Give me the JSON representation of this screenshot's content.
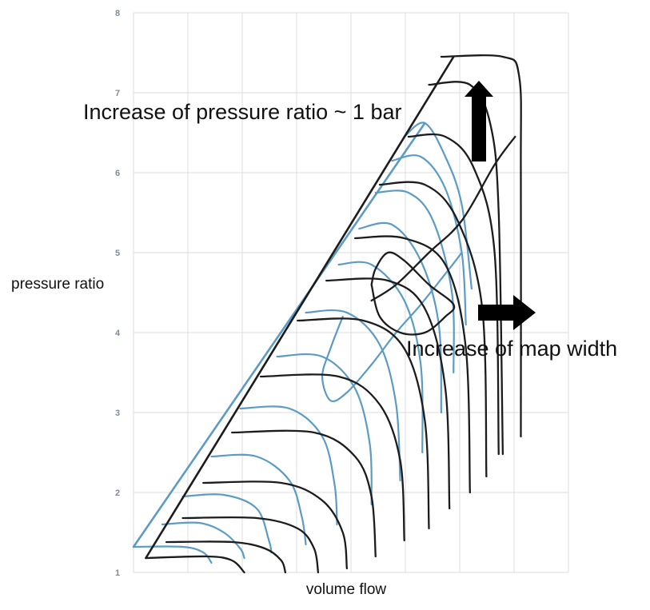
{
  "chart_data": {
    "type": "line",
    "title": "",
    "xlabel": "volume flow",
    "ylabel": "pressure ratio",
    "ylim": [
      1,
      8
    ],
    "y_ticks": [
      "1",
      "2",
      "3",
      "4",
      "5",
      "6",
      "7",
      "8"
    ],
    "x_tick_labels": [],
    "grid": true,
    "colors": {
      "dark": "#1c1c1c",
      "blue": "#5b9bc4",
      "grid": "#dcdcdc",
      "tick": "#7f8c9a",
      "arrow": "#000000"
    },
    "series": [
      {
        "set": "dark",
        "kind": "surge-line",
        "points": [
          [
            0.15,
            1.18
          ],
          [
            3.9,
            7.45
          ]
        ]
      },
      {
        "set": "dark",
        "kind": "speed-line",
        "points": [
          [
            0.15,
            1.18
          ],
          [
            0.9,
            1.2
          ],
          [
            1.2,
            1.15
          ],
          [
            1.35,
            1.0
          ]
        ]
      },
      {
        "set": "dark",
        "kind": "speed-line",
        "points": [
          [
            0.4,
            1.38
          ],
          [
            1.2,
            1.38
          ],
          [
            1.6,
            1.3
          ],
          [
            1.8,
            1.15
          ],
          [
            1.85,
            1.0
          ]
        ]
      },
      {
        "set": "dark",
        "kind": "speed-line",
        "points": [
          [
            0.6,
            1.68
          ],
          [
            1.5,
            1.68
          ],
          [
            2.0,
            1.55
          ],
          [
            2.2,
            1.3
          ],
          [
            2.25,
            1.0
          ]
        ]
      },
      {
        "set": "dark",
        "kind": "speed-line",
        "points": [
          [
            0.85,
            2.12
          ],
          [
            1.8,
            2.12
          ],
          [
            2.3,
            1.9
          ],
          [
            2.55,
            1.5
          ],
          [
            2.6,
            1.05
          ]
        ]
      },
      {
        "set": "dark",
        "kind": "speed-line",
        "points": [
          [
            1.2,
            2.75
          ],
          [
            2.2,
            2.75
          ],
          [
            2.7,
            2.45
          ],
          [
            2.9,
            1.95
          ],
          [
            2.95,
            1.2
          ]
        ]
      },
      {
        "set": "dark",
        "kind": "speed-line",
        "points": [
          [
            1.55,
            3.45
          ],
          [
            2.5,
            3.45
          ],
          [
            3.0,
            3.1
          ],
          [
            3.25,
            2.4
          ],
          [
            3.3,
            1.4
          ]
        ]
      },
      {
        "set": "dark",
        "kind": "speed-line",
        "points": [
          [
            2.0,
            4.15
          ],
          [
            2.8,
            4.15
          ],
          [
            3.3,
            3.8
          ],
          [
            3.55,
            2.9
          ],
          [
            3.6,
            1.55
          ]
        ]
      },
      {
        "set": "dark",
        "kind": "speed-line",
        "points": [
          [
            2.35,
            4.65
          ],
          [
            3.1,
            4.65
          ],
          [
            3.55,
            4.3
          ],
          [
            3.8,
            3.3
          ],
          [
            3.85,
            1.8
          ]
        ]
      },
      {
        "set": "dark",
        "kind": "speed-line",
        "points": [
          [
            2.7,
            5.18
          ],
          [
            3.3,
            5.18
          ],
          [
            3.8,
            4.85
          ],
          [
            4.05,
            3.8
          ],
          [
            4.1,
            2.0
          ]
        ]
      },
      {
        "set": "dark",
        "kind": "speed-line",
        "points": [
          [
            3.0,
            5.85
          ],
          [
            3.55,
            5.85
          ],
          [
            3.95,
            5.4
          ],
          [
            4.25,
            4.3
          ],
          [
            4.3,
            2.2
          ]
        ]
      },
      {
        "set": "dark",
        "kind": "speed-line",
        "points": [
          [
            3.35,
            6.45
          ],
          [
            3.8,
            6.45
          ],
          [
            4.15,
            6.05
          ],
          [
            4.4,
            5.0
          ],
          [
            4.45,
            2.48
          ]
        ]
      },
      {
        "set": "dark",
        "kind": "speed-line",
        "points": [
          [
            3.6,
            7.1
          ],
          [
            4.1,
            7.1
          ],
          [
            4.35,
            6.6
          ],
          [
            4.45,
            5.5
          ],
          [
            4.5,
            2.48
          ]
        ]
      },
      {
        "set": "dark",
        "kind": "speed-line",
        "points": [
          [
            3.75,
            7.45
          ],
          [
            4.5,
            7.45
          ],
          [
            4.7,
            7.2
          ],
          [
            4.72,
            6.0
          ],
          [
            4.72,
            2.7
          ]
        ]
      },
      {
        "set": "dark",
        "kind": "efficiency-island",
        "points": [
          [
            2.9,
            4.6
          ],
          [
            2.95,
            4.8
          ],
          [
            3.1,
            5.0
          ],
          [
            3.3,
            4.9
          ],
          [
            3.6,
            4.6
          ],
          [
            3.9,
            4.35
          ],
          [
            3.8,
            4.2
          ],
          [
            3.55,
            4.0
          ],
          [
            3.25,
            4.0
          ],
          [
            3.0,
            4.2
          ],
          [
            2.9,
            4.6
          ]
        ]
      },
      {
        "set": "dark",
        "kind": "efficiency-island",
        "points": [
          [
            2.9,
            4.4
          ],
          [
            3.2,
            4.6
          ],
          [
            3.6,
            5.0
          ],
          [
            4.0,
            5.4
          ],
          [
            4.4,
            6.1
          ],
          [
            4.65,
            6.45
          ]
        ]
      },
      {
        "set": "blue",
        "kind": "surge-line",
        "points": [
          [
            0.0,
            1.32
          ],
          [
            3.55,
            6.62
          ]
        ]
      },
      {
        "set": "blue",
        "kind": "speed-line",
        "points": [
          [
            0.0,
            1.32
          ],
          [
            0.6,
            1.32
          ],
          [
            0.85,
            1.25
          ],
          [
            0.95,
            1.12
          ]
        ]
      },
      {
        "set": "blue",
        "kind": "speed-line",
        "points": [
          [
            0.35,
            1.6
          ],
          [
            0.8,
            1.62
          ],
          [
            1.1,
            1.5
          ],
          [
            1.3,
            1.3
          ],
          [
            1.35,
            1.18
          ]
        ]
      },
      {
        "set": "blue",
        "kind": "speed-line",
        "points": [
          [
            0.6,
            1.95
          ],
          [
            1.1,
            1.97
          ],
          [
            1.5,
            1.8
          ],
          [
            1.65,
            1.4
          ],
          [
            1.68,
            1.25
          ]
        ]
      },
      {
        "set": "blue",
        "kind": "speed-line",
        "points": [
          [
            0.95,
            2.45
          ],
          [
            1.5,
            2.45
          ],
          [
            1.9,
            2.15
          ],
          [
            2.05,
            1.7
          ],
          [
            2.1,
            1.35
          ]
        ]
      },
      {
        "set": "blue",
        "kind": "speed-line",
        "points": [
          [
            1.3,
            3.05
          ],
          [
            1.9,
            3.05
          ],
          [
            2.3,
            2.7
          ],
          [
            2.45,
            2.1
          ],
          [
            2.48,
            1.6
          ]
        ]
      },
      {
        "set": "blue",
        "kind": "speed-line",
        "points": [
          [
            1.75,
            3.7
          ],
          [
            2.3,
            3.7
          ],
          [
            2.7,
            3.3
          ],
          [
            2.88,
            2.6
          ],
          [
            2.9,
            1.85
          ]
        ]
      },
      {
        "set": "blue",
        "kind": "speed-line",
        "points": [
          [
            2.1,
            4.25
          ],
          [
            2.6,
            4.25
          ],
          [
            3.0,
            3.85
          ],
          [
            3.2,
            3.1
          ],
          [
            3.25,
            2.15
          ]
        ]
      },
      {
        "set": "blue",
        "kind": "speed-line",
        "points": [
          [
            2.5,
            4.85
          ],
          [
            2.9,
            4.85
          ],
          [
            3.3,
            4.4
          ],
          [
            3.5,
            3.6
          ],
          [
            3.52,
            2.5
          ]
        ]
      },
      {
        "set": "blue",
        "kind": "speed-line",
        "points": [
          [
            2.75,
            5.3
          ],
          [
            3.15,
            5.35
          ],
          [
            3.5,
            4.9
          ],
          [
            3.72,
            4.1
          ],
          [
            3.75,
            3.0
          ]
        ]
      },
      {
        "set": "blue",
        "kind": "speed-line",
        "points": [
          [
            2.95,
            5.75
          ],
          [
            3.35,
            5.75
          ],
          [
            3.65,
            5.4
          ],
          [
            3.88,
            4.5
          ],
          [
            3.9,
            3.5
          ]
        ]
      },
      {
        "set": "blue",
        "kind": "speed-line",
        "points": [
          [
            3.15,
            6.15
          ],
          [
            3.5,
            6.2
          ],
          [
            3.8,
            5.8
          ],
          [
            4.0,
            5.0
          ],
          [
            4.05,
            4.1
          ]
        ]
      },
      {
        "set": "blue",
        "kind": "speed-line",
        "points": [
          [
            3.3,
            6.45
          ],
          [
            3.55,
            6.62
          ],
          [
            3.8,
            6.2
          ],
          [
            4.0,
            5.6
          ],
          [
            4.12,
            4.55
          ]
        ]
      },
      {
        "set": "blue",
        "kind": "efficiency-island",
        "points": [
          [
            2.55,
            4.2
          ],
          [
            2.4,
            3.8
          ],
          [
            2.3,
            3.45
          ],
          [
            2.4,
            3.15
          ],
          [
            2.6,
            3.25
          ],
          [
            2.9,
            3.6
          ],
          [
            3.2,
            4.0
          ],
          [
            3.5,
            4.35
          ],
          [
            3.85,
            4.8
          ],
          [
            4.0,
            5.0
          ]
        ]
      }
    ]
  },
  "annotations": {
    "pressure_ratio_increase": "Increase of pressure ratio ~ 1 bar",
    "map_width_increase": "Increase of map width"
  }
}
